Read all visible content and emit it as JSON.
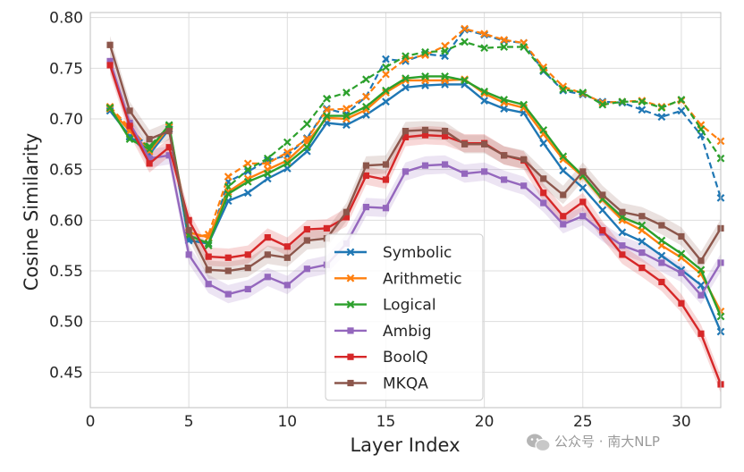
{
  "chart_data": {
    "type": "line",
    "title": "",
    "xlabel": "Layer Index",
    "ylabel": "Cosine Similarity",
    "xlim": [
      0,
      32
    ],
    "ylim": [
      0.415,
      0.805
    ],
    "xticks": [
      0,
      5,
      10,
      15,
      20,
      25,
      30
    ],
    "yticks": [
      0.45,
      0.5,
      0.55,
      0.6,
      0.65,
      0.7,
      0.75,
      0.8
    ],
    "ytick_labels": [
      "0.45",
      "0.50",
      "0.55",
      "0.60",
      "0.65",
      "0.70",
      "0.75",
      "0.80"
    ],
    "grid": true,
    "legend_position": "lower-center",
    "x": [
      1,
      2,
      3,
      4,
      5,
      6,
      7,
      8,
      9,
      10,
      11,
      12,
      13,
      14,
      15,
      16,
      17,
      18,
      19,
      20,
      21,
      22,
      23,
      24,
      25,
      26,
      27,
      28,
      29,
      30,
      31,
      32
    ],
    "series": [
      {
        "name": "Symbolic",
        "color": "#1f77b4",
        "marker": "x",
        "band": false,
        "values": [
          0.708,
          0.683,
          0.665,
          0.69,
          0.58,
          0.577,
          0.619,
          0.627,
          0.641,
          0.651,
          0.668,
          0.696,
          0.694,
          0.704,
          0.717,
          0.731,
          0.733,
          0.734,
          0.734,
          0.718,
          0.71,
          0.706,
          0.676,
          0.649,
          0.632,
          0.61,
          0.588,
          0.579,
          0.565,
          0.551,
          0.536,
          0.49
        ]
      },
      {
        "name": "Arithmetic",
        "color": "#ff7f0e",
        "marker": "x",
        "band": false,
        "values": [
          0.71,
          0.688,
          0.668,
          0.692,
          0.588,
          0.583,
          0.628,
          0.641,
          0.65,
          0.659,
          0.677,
          0.701,
          0.7,
          0.709,
          0.726,
          0.738,
          0.738,
          0.738,
          0.739,
          0.725,
          0.716,
          0.711,
          0.685,
          0.66,
          0.643,
          0.62,
          0.6,
          0.59,
          0.575,
          0.563,
          0.547,
          0.51
        ]
      },
      {
        "name": "Logical",
        "color": "#2ca02c",
        "marker": "x",
        "band": false,
        "values": [
          0.711,
          0.68,
          0.67,
          0.694,
          0.585,
          0.577,
          0.626,
          0.638,
          0.646,
          0.656,
          0.672,
          0.703,
          0.703,
          0.712,
          0.728,
          0.74,
          0.742,
          0.742,
          0.738,
          0.727,
          0.719,
          0.714,
          0.689,
          0.663,
          0.644,
          0.621,
          0.603,
          0.595,
          0.58,
          0.567,
          0.551,
          0.505
        ]
      },
      {
        "name": "Ambig",
        "color": "#9467bd",
        "marker": "s",
        "band": true,
        "values": [
          0.757,
          0.696,
          0.661,
          0.664,
          0.566,
          0.537,
          0.527,
          0.532,
          0.544,
          0.536,
          0.552,
          0.556,
          0.577,
          0.613,
          0.612,
          0.648,
          0.654,
          0.655,
          0.646,
          0.648,
          0.64,
          0.634,
          0.617,
          0.596,
          0.604,
          0.588,
          0.575,
          0.568,
          0.558,
          0.548,
          0.526,
          0.558
        ]
      },
      {
        "name": "BoolQ",
        "color": "#d62728",
        "marker": "s",
        "band": true,
        "values": [
          0.753,
          0.693,
          0.656,
          0.672,
          0.6,
          0.564,
          0.563,
          0.566,
          0.583,
          0.574,
          0.591,
          0.592,
          0.603,
          0.644,
          0.64,
          0.682,
          0.684,
          0.683,
          0.676,
          0.676,
          0.664,
          0.659,
          0.627,
          0.604,
          0.618,
          0.59,
          0.566,
          0.553,
          0.539,
          0.518,
          0.488,
          0.438
        ]
      },
      {
        "name": "MKQA",
        "color": "#8c564b",
        "marker": "s",
        "band": true,
        "values": [
          0.773,
          0.708,
          0.68,
          0.688,
          0.59,
          0.551,
          0.55,
          0.553,
          0.566,
          0.563,
          0.58,
          0.582,
          0.608,
          0.654,
          0.655,
          0.688,
          0.689,
          0.688,
          0.675,
          0.675,
          0.664,
          0.66,
          0.641,
          0.625,
          0.648,
          0.625,
          0.608,
          0.604,
          0.595,
          0.584,
          0.56,
          0.592
        ]
      }
    ],
    "dashed_series": [
      {
        "name": "Symbolic (dashed)",
        "color": "#1f77b4",
        "values": [
          0.71,
          0.69,
          0.672,
          0.69,
          0.58,
          0.577,
          0.638,
          0.648,
          0.659,
          0.664,
          0.681,
          0.71,
          0.705,
          0.722,
          0.759,
          0.757,
          0.764,
          0.762,
          0.788,
          0.783,
          0.777,
          0.775,
          0.747,
          0.728,
          0.724,
          0.717,
          0.716,
          0.709,
          0.702,
          0.708,
          0.684,
          0.622
        ]
      },
      {
        "name": "Arithmetic (dashed)",
        "color": "#ff7f0e",
        "values": [
          0.712,
          0.691,
          0.671,
          0.69,
          0.582,
          0.586,
          0.643,
          0.656,
          0.656,
          0.667,
          0.68,
          0.709,
          0.71,
          0.722,
          0.744,
          0.759,
          0.763,
          0.772,
          0.789,
          0.784,
          0.778,
          0.775,
          0.751,
          0.732,
          0.725,
          0.716,
          0.717,
          0.718,
          0.712,
          0.718,
          0.694,
          0.678
        ]
      },
      {
        "name": "Logical (dashed)",
        "color": "#2ca02c",
        "values": [
          0.71,
          0.682,
          0.673,
          0.693,
          0.582,
          0.575,
          0.633,
          0.65,
          0.661,
          0.677,
          0.695,
          0.72,
          0.726,
          0.739,
          0.751,
          0.762,
          0.766,
          0.767,
          0.776,
          0.77,
          0.771,
          0.771,
          0.748,
          0.729,
          0.726,
          0.714,
          0.717,
          0.717,
          0.711,
          0.719,
          0.69,
          0.661
        ]
      }
    ]
  },
  "watermark": {
    "icon": "wechat-icon",
    "text": "公众号 · 南大NLP"
  }
}
